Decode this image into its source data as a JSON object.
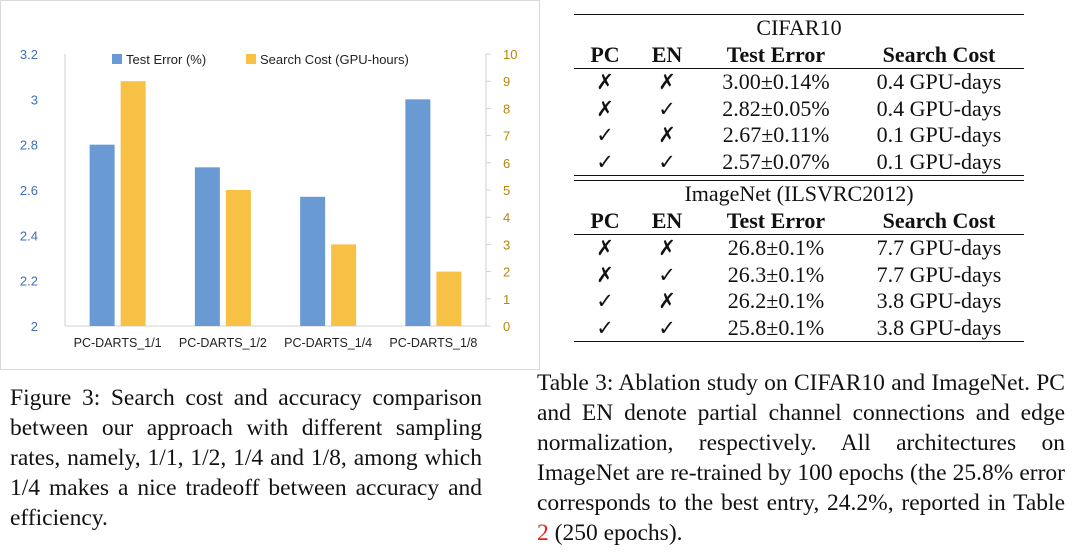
{
  "chart_data": {
    "type": "bar",
    "categories": [
      "PC-DARTS_1/1",
      "PC-DARTS_1/2",
      "PC-DARTS_1/4",
      "PC-DARTS_1/8"
    ],
    "series": [
      {
        "name": "Test Error (%)",
        "axis": "left",
        "color": "#6a9ad3",
        "values": [
          2.8,
          2.7,
          2.57,
          3.0
        ]
      },
      {
        "name": "Search Cost (GPU-hours)",
        "axis": "right",
        "color": "#f6c144",
        "values": [
          9,
          5,
          3,
          2
        ]
      }
    ],
    "ylim_left": [
      2,
      3.2
    ],
    "yticks_left": [
      "2",
      "2.2",
      "2.4",
      "2.6",
      "2.8",
      "3",
      "3.2"
    ],
    "ylim_right": [
      0,
      10
    ],
    "yticks_right": [
      "0",
      "1",
      "2",
      "3",
      "4",
      "5",
      "6",
      "7",
      "8",
      "9",
      "10"
    ],
    "legend_position": "top"
  },
  "figure_caption": {
    "label": "Figure 3:",
    "text": "Search cost and accuracy comparison between our approach with different sampling rates, namely, 1/1, 1/2, 1/4 and 1/8, among which 1/4 makes a nice tradeoff between accuracy and efficiency."
  },
  "table": {
    "headers": [
      "PC",
      "EN",
      "Test Error",
      "Search Cost"
    ],
    "sections": [
      {
        "title": "CIFAR10",
        "rows": [
          [
            "✗",
            "✗",
            "3.00±0.14%",
            "0.4 GPU-days"
          ],
          [
            "✗",
            "✓",
            "2.82±0.05%",
            "0.4 GPU-days"
          ],
          [
            "✓",
            "✗",
            "2.67±0.11%",
            "0.1 GPU-days"
          ],
          [
            "✓",
            "✓",
            "2.57±0.07%",
            "0.1 GPU-days"
          ]
        ]
      },
      {
        "title": "ImageNet (ILSVRC2012)",
        "rows": [
          [
            "✗",
            "✗",
            "26.8±0.1%",
            "7.7 GPU-days"
          ],
          [
            "✗",
            "✓",
            "26.3±0.1%",
            "7.7 GPU-days"
          ],
          [
            "✓",
            "✗",
            "26.2±0.1%",
            "3.8 GPU-days"
          ],
          [
            "✓",
            "✓",
            "25.8±0.1%",
            "3.8 GPU-days"
          ]
        ]
      }
    ]
  },
  "table_caption": {
    "label": "Table 3:",
    "text_before_ref": "Ablation study on CIFAR10 and ImageNet. PC and EN denote partial channel connections and edge normalization, respectively. All architectures on ImageNet are re-trained by 100 epochs (the 25.8% error corresponds to the best entry, 24.2%, reported in Table ",
    "ref": "2",
    "text_after_ref": " (250 epochs)."
  }
}
